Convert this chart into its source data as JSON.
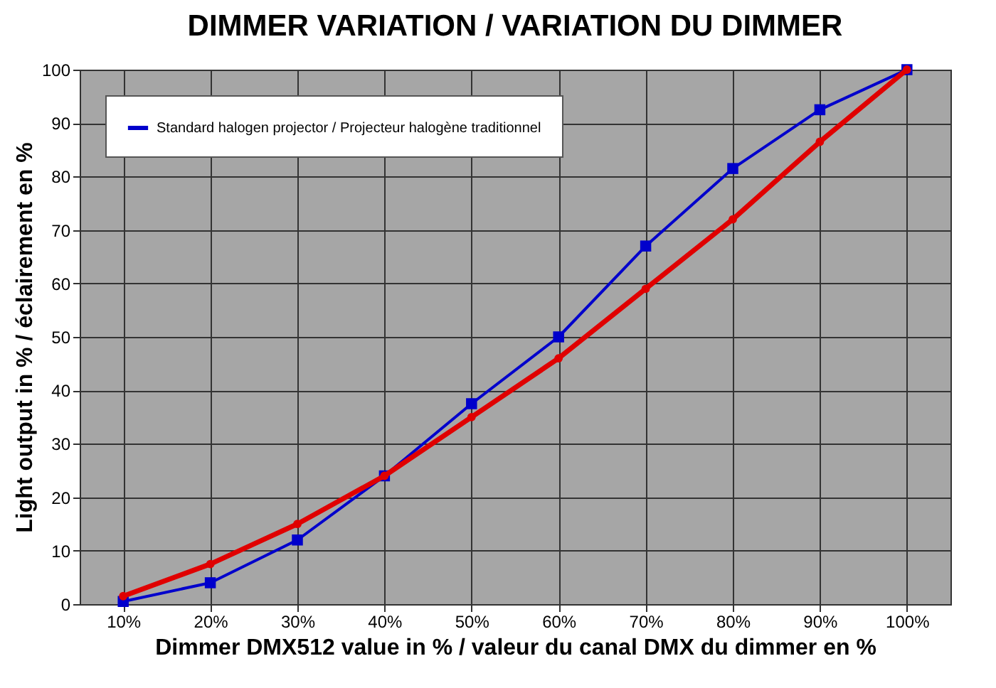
{
  "chart_data": {
    "type": "line",
    "title": "DIMMER VARIATION / VARIATION DU DIMMER",
    "xlabel": "Dimmer DMX512 value in % / valeur du canal DMX du dimmer en %",
    "ylabel": "Light output in % / éclairement en %",
    "categories": [
      "10%",
      "20%",
      "30%",
      "40%",
      "50%",
      "60%",
      "70%",
      "80%",
      "90%",
      "100%"
    ],
    "series": [
      {
        "color": "#e00000",
        "marker": "circle",
        "values": [
          1.5,
          7.5,
          15,
          24,
          35,
          46,
          59,
          72,
          86.5,
          100
        ]
      },
      {
        "name": "Standard halogen projector / Projecteur halogène traditionnel",
        "color": "#0000cc",
        "marker": "square",
        "values": [
          0.5,
          4,
          12,
          24,
          37.5,
          50,
          67,
          81.5,
          92.5,
          100
        ]
      }
    ],
    "ylim": [
      0,
      100
    ],
    "yticks": [
      0,
      10,
      20,
      30,
      40,
      50,
      60,
      70,
      80,
      90,
      100
    ],
    "grid": true,
    "legend": "top left"
  }
}
